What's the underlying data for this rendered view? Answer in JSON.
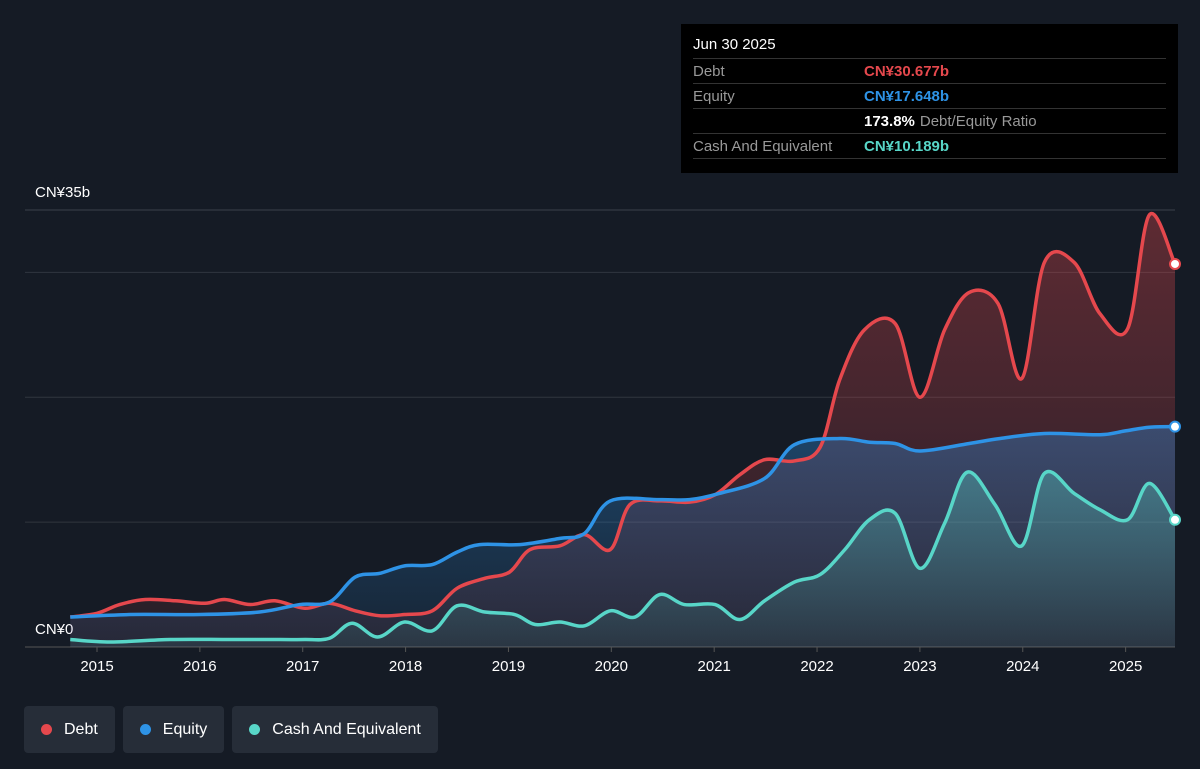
{
  "chart_data": {
    "type": "area",
    "xlim": [
      2014.3,
      2025.48
    ],
    "xticks": [
      2015,
      2016,
      2017,
      2018,
      2019,
      2020,
      2021,
      2022,
      2023,
      2024,
      2025
    ],
    "ylim": [
      0,
      35
    ],
    "yticks": [
      {
        "value": 0,
        "label": "CN¥0"
      },
      {
        "value": 35,
        "label": "CN¥35b"
      }
    ],
    "ygrid": [
      10,
      20,
      30
    ],
    "legend": "bottom-left",
    "series": [
      {
        "name": "Debt",
        "color": "#e5484d",
        "x": [
          2014.74,
          2015.0,
          2015.22,
          2015.47,
          2015.76,
          2016.05,
          2016.24,
          2016.49,
          2016.73,
          2017.02,
          2017.26,
          2017.51,
          2017.75,
          2017.99,
          2018.26,
          2018.5,
          2018.77,
          2019.01,
          2019.21,
          2019.5,
          2019.74,
          2019.99,
          2020.18,
          2020.47,
          2020.76,
          2021.01,
          2021.25,
          2021.49,
          2021.78,
          2022.03,
          2022.22,
          2022.46,
          2022.76,
          2023.0,
          2023.24,
          2023.48,
          2023.76,
          2023.99,
          2024.21,
          2024.5,
          2024.75,
          2025.02,
          2025.23,
          2025.48
        ],
        "values": [
          2.4,
          2.7,
          3.4,
          3.8,
          3.7,
          3.5,
          3.8,
          3.4,
          3.7,
          3.1,
          3.5,
          2.9,
          2.5,
          2.6,
          2.9,
          4.7,
          5.5,
          6.0,
          7.8,
          8.1,
          9.0,
          7.8,
          11.4,
          11.7,
          11.6,
          12.2,
          13.8,
          15.0,
          14.9,
          16.0,
          21.4,
          25.4,
          25.9,
          20.0,
          25.4,
          28.4,
          27.5,
          21.5,
          30.8,
          30.8,
          26.7,
          25.5,
          34.6,
          30.677
        ]
      },
      {
        "name": "Equity",
        "color": "#2e93e6",
        "x": [
          2014.74,
          2015.32,
          2016.0,
          2016.58,
          2016.97,
          2017.26,
          2017.51,
          2017.75,
          2017.99,
          2018.26,
          2018.5,
          2018.72,
          2019.11,
          2019.5,
          2019.74,
          2019.99,
          2020.47,
          2020.76,
          2021.05,
          2021.49,
          2021.78,
          2022.22,
          2022.51,
          2022.76,
          2023.0,
          2023.48,
          2023.78,
          2024.21,
          2024.75,
          2024.99,
          2025.23,
          2025.48
        ],
        "values": [
          2.4,
          2.6,
          2.6,
          2.8,
          3.4,
          3.6,
          5.6,
          5.9,
          6.5,
          6.6,
          7.6,
          8.2,
          8.2,
          8.7,
          9.1,
          11.7,
          11.8,
          11.8,
          12.3,
          13.5,
          16.2,
          16.7,
          16.4,
          16.3,
          15.7,
          16.3,
          16.7,
          17.1,
          17.0,
          17.3,
          17.6,
          17.648
        ]
      },
      {
        "name": "Cash And Equivalent",
        "color": "#58d6c8",
        "x": [
          2014.74,
          2015.13,
          2015.71,
          2016.29,
          2016.78,
          2017.02,
          2017.26,
          2017.48,
          2017.73,
          2017.99,
          2018.26,
          2018.5,
          2018.77,
          2019.06,
          2019.26,
          2019.5,
          2019.74,
          2019.99,
          2020.23,
          2020.47,
          2020.71,
          2021.01,
          2021.25,
          2021.49,
          2021.78,
          2022.03,
          2022.27,
          2022.51,
          2022.76,
          2023.0,
          2023.24,
          2023.46,
          2023.73,
          2023.99,
          2024.21,
          2024.5,
          2024.75,
          2025.02,
          2025.23,
          2025.48
        ],
        "values": [
          0.6,
          0.4,
          0.6,
          0.6,
          0.6,
          0.6,
          0.7,
          1.9,
          0.8,
          2.0,
          1.3,
          3.3,
          2.8,
          2.6,
          1.8,
          2.0,
          1.7,
          2.9,
          2.4,
          4.2,
          3.4,
          3.4,
          2.2,
          3.7,
          5.2,
          5.8,
          7.8,
          10.2,
          10.7,
          6.3,
          9.9,
          14.0,
          11.4,
          8.1,
          13.9,
          12.3,
          11.0,
          10.2,
          13.1,
          10.189
        ]
      }
    ],
    "tooltip": {
      "title": "Jun 30 2025",
      "rows": [
        {
          "label": "Debt",
          "value": "CN¥30.677b"
        },
        {
          "label": "Equity",
          "value": "CN¥17.648b"
        }
      ],
      "ratio": "173.8%",
      "ratio_label": "Debt/Equity Ratio",
      "last": {
        "label": "Cash And Equivalent",
        "value": "CN¥10.189b"
      }
    }
  }
}
